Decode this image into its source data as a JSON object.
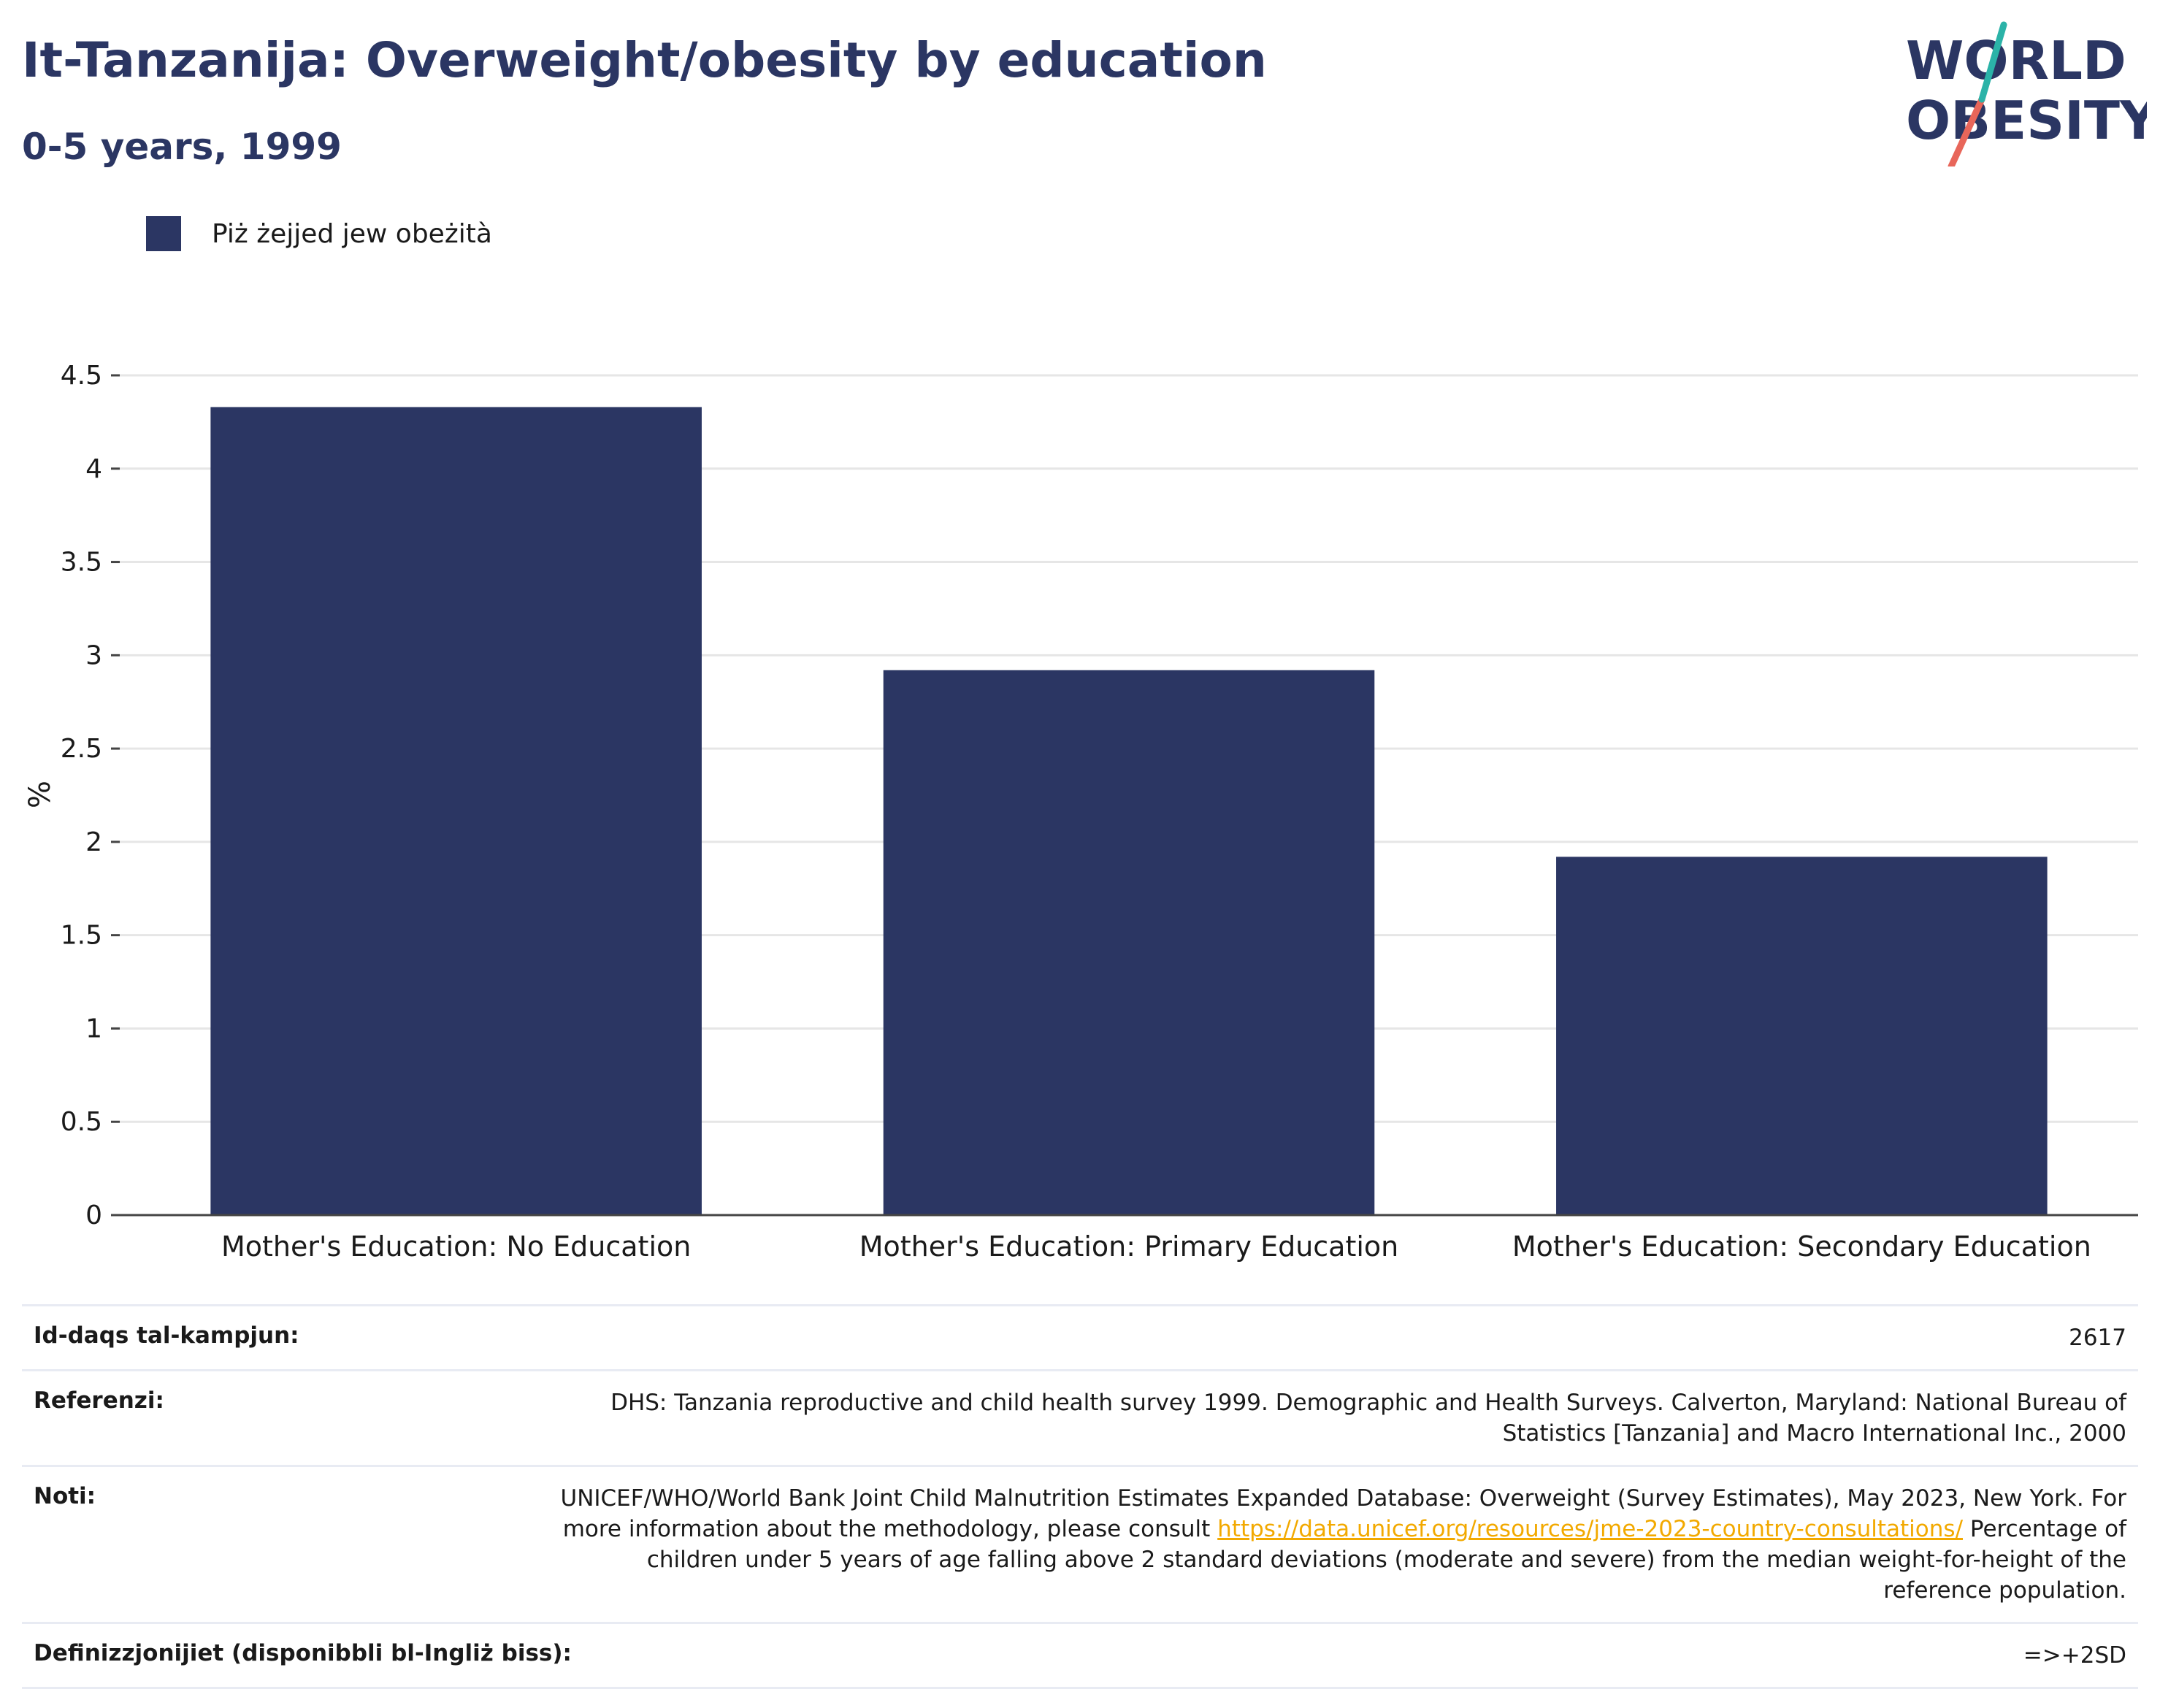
{
  "header": {
    "title": "It-Tanzanija: Overweight/obesity by education",
    "subtitle": "0-5 years, 1999"
  },
  "logo": {
    "line1": "WORLD",
    "line2": "OBESITY",
    "colors": {
      "text": "#2b3663",
      "teal": "#2bb3a8",
      "coral": "#e8665a"
    }
  },
  "legend": {
    "label": "Piż żejjed jew obeżità",
    "color": "#2b3663"
  },
  "chart_data": {
    "type": "bar",
    "categories": [
      "Mother's Education: No Education",
      "Mother's Education: Primary Education",
      "Mother's Education: Secondary Education"
    ],
    "series": [
      {
        "name": "Piż żejjed jew obeżità",
        "values": [
          4.33,
          2.92,
          1.92
        ],
        "color": "#2b3663"
      }
    ],
    "ylabel": "%",
    "ylim": [
      0,
      4.5
    ],
    "yticks": [
      0,
      0.5,
      1,
      1.5,
      2,
      2.5,
      3,
      3.5,
      4,
      4.5
    ],
    "ytick_labels": [
      "0",
      "0.5",
      "1",
      "1.5",
      "2",
      "2.5",
      "3",
      "3.5",
      "4",
      "4.5"
    ],
    "grid": true,
    "legend_position": "top-left"
  },
  "info_table": {
    "sample_size": {
      "label": "Id-daqs tal-kampjun:",
      "value": "2617"
    },
    "references": {
      "label": "Referenzi:",
      "value": "DHS: Tanzania reproductive and child health survey 1999. Demographic and Health Surveys. Calverton, Maryland: National Bureau of Statistics [Tanzania] and Macro International Inc., 2000"
    },
    "notes": {
      "label": "Noti:",
      "text_before": "UNICEF/WHO/World Bank Joint Child Malnutrition Estimates Expanded Database: Overweight (Survey Estimates), May 2023, New York. For more information about the methodology, please consult",
      "link": "https://data.unicef.org/resources/jme-2023-country-consultations/",
      "text_after": "Percentage of children under 5 years of age falling above 2 standard deviations (moderate and severe) from the median weight-for-height of the reference population."
    },
    "definitions": {
      "label": "Definizzjonijiet (disponibbli bl-Ingliż biss):",
      "value": "=>+2SD"
    }
  }
}
